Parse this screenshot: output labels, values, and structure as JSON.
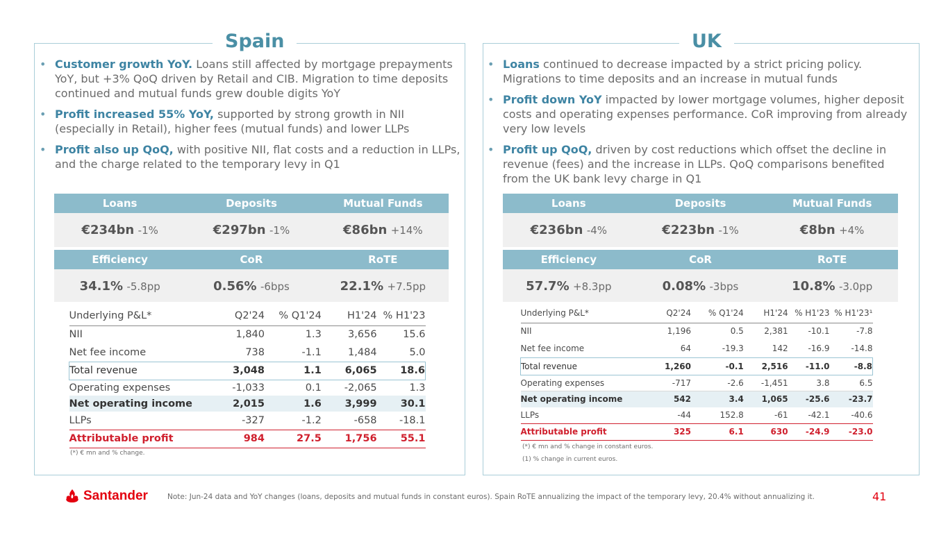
{
  "spain": {
    "title": "Spain",
    "bullets": [
      {
        "bold": "Customer growth YoY.",
        "text": " Loans still affected by mortgage prepayments YoY, but +3% QoQ driven by Retail and CIB. Migration to time deposits continued and mutual funds grew double digits YoY"
      },
      {
        "bold": "Profit increased 55% YoY,",
        "text": " supported by strong growth in NII (especially in Retail), higher fees (mutual funds) and lower LLPs"
      },
      {
        "bold": "Profit also up QoQ,",
        "text": " with positive NII, flat costs and a reduction in LLPs, and the charge related to the temporary levy in Q1"
      }
    ],
    "kpi_row1": {
      "headers": [
        "Loans",
        "Deposits",
        "Mutual Funds"
      ],
      "values": [
        [
          "€234bn",
          "-1%"
        ],
        [
          "€297bn",
          "-1%"
        ],
        [
          "€86bn",
          "+14%"
        ]
      ]
    },
    "kpi_row2": {
      "headers": [
        "Efficiency",
        "CoR",
        "RoTE"
      ],
      "values": [
        [
          "34.1%",
          "-5.8pp"
        ],
        [
          "0.56%",
          "-6bps"
        ],
        [
          "22.1%",
          "+7.5pp"
        ]
      ]
    },
    "pl": {
      "headers": [
        "Underlying P&L*",
        "Q2'24",
        "% Q1'24",
        "H1'24",
        "% H1'23"
      ],
      "rows": [
        [
          "NII",
          "1,840",
          "1.3",
          "3,656",
          "15.6"
        ],
        [
          "Net fee income",
          "738",
          "-1.1",
          "1,484",
          "5.0"
        ],
        [
          "Total revenue",
          "3,048",
          "1.1",
          "6,065",
          "18.6"
        ],
        [
          "Operating expenses",
          "-1,033",
          "0.1",
          "-2,065",
          "1.3"
        ],
        [
          "Net operating income",
          "2,015",
          "1.6",
          "3,999",
          "30.1"
        ],
        [
          "LLPs",
          "-327",
          "-1.2",
          "-658",
          "-18.1"
        ],
        [
          "Attributable profit",
          "984",
          "27.5",
          "1,756",
          "55.1"
        ]
      ]
    },
    "footnote": "(*) € mn and % change."
  },
  "uk": {
    "title": "UK",
    "bullets": [
      {
        "bold": "Loans",
        "text": " continued to decrease impacted by a strict pricing policy. Migrations to time deposits and an increase in mutual funds"
      },
      {
        "bold": "Profit down YoY",
        "text": " impacted by lower mortgage volumes, higher deposit costs and operating expenses performance. CoR improving from already very low levels"
      },
      {
        "bold": "Profit up QoQ,",
        "text": " driven by cost reductions which offset the decline in revenue (fees) and the increase in LLPs. QoQ comparisons benefited from the UK bank levy charge in Q1"
      }
    ],
    "kpi_row1": {
      "headers": [
        "Loans",
        "Deposits",
        "Mutual Funds"
      ],
      "values": [
        [
          "€236bn",
          "-4%"
        ],
        [
          "€223bn",
          "-1%"
        ],
        [
          "€8bn",
          "+4%"
        ]
      ]
    },
    "kpi_row2": {
      "headers": [
        "Efficiency",
        "CoR",
        "RoTE"
      ],
      "values": [
        [
          "57.7%",
          "+8.3pp"
        ],
        [
          "0.08%",
          "-3bps"
        ],
        [
          "10.8%",
          "-3.0pp"
        ]
      ]
    },
    "pl": {
      "headers": [
        "Underlying P&L*",
        "Q2'24",
        "% Q1'24",
        "H1'24",
        "% H1'23",
        "% H1'23¹"
      ],
      "rows": [
        [
          "NII",
          "1,196",
          "0.5",
          "2,381",
          "-10.1",
          "-7.8"
        ],
        [
          "Net fee income",
          "64",
          "-19.3",
          "142",
          "-16.9",
          "-14.8"
        ],
        [
          "Total revenue",
          "1,260",
          "-0.1",
          "2,516",
          "-11.0",
          "-8.8"
        ],
        [
          "Operating expenses",
          "-717",
          "-2.6",
          "-1,451",
          "3.8",
          "6.5"
        ],
        [
          "Net operating income",
          "542",
          "3.4",
          "1,065",
          "-25.6",
          "-23.7"
        ],
        [
          "LLPs",
          "-44",
          "152.8",
          "-61",
          "-42.1",
          "-40.6"
        ],
        [
          "Attributable profit",
          "325",
          "6.1",
          "630",
          "-24.9",
          "-23.0"
        ]
      ]
    },
    "footnotes": [
      "(*) € mn and % change in constant euros.",
      "(1)  % change in current euros."
    ]
  },
  "footer": {
    "brand": "Santander",
    "note": "Note: Jun-24 data and YoY changes (loans, deposits and mutual funds in constant euros). Spain RoTE annualizing the impact of the temporary levy, 20.4% without annualizing it.",
    "page": "41"
  }
}
